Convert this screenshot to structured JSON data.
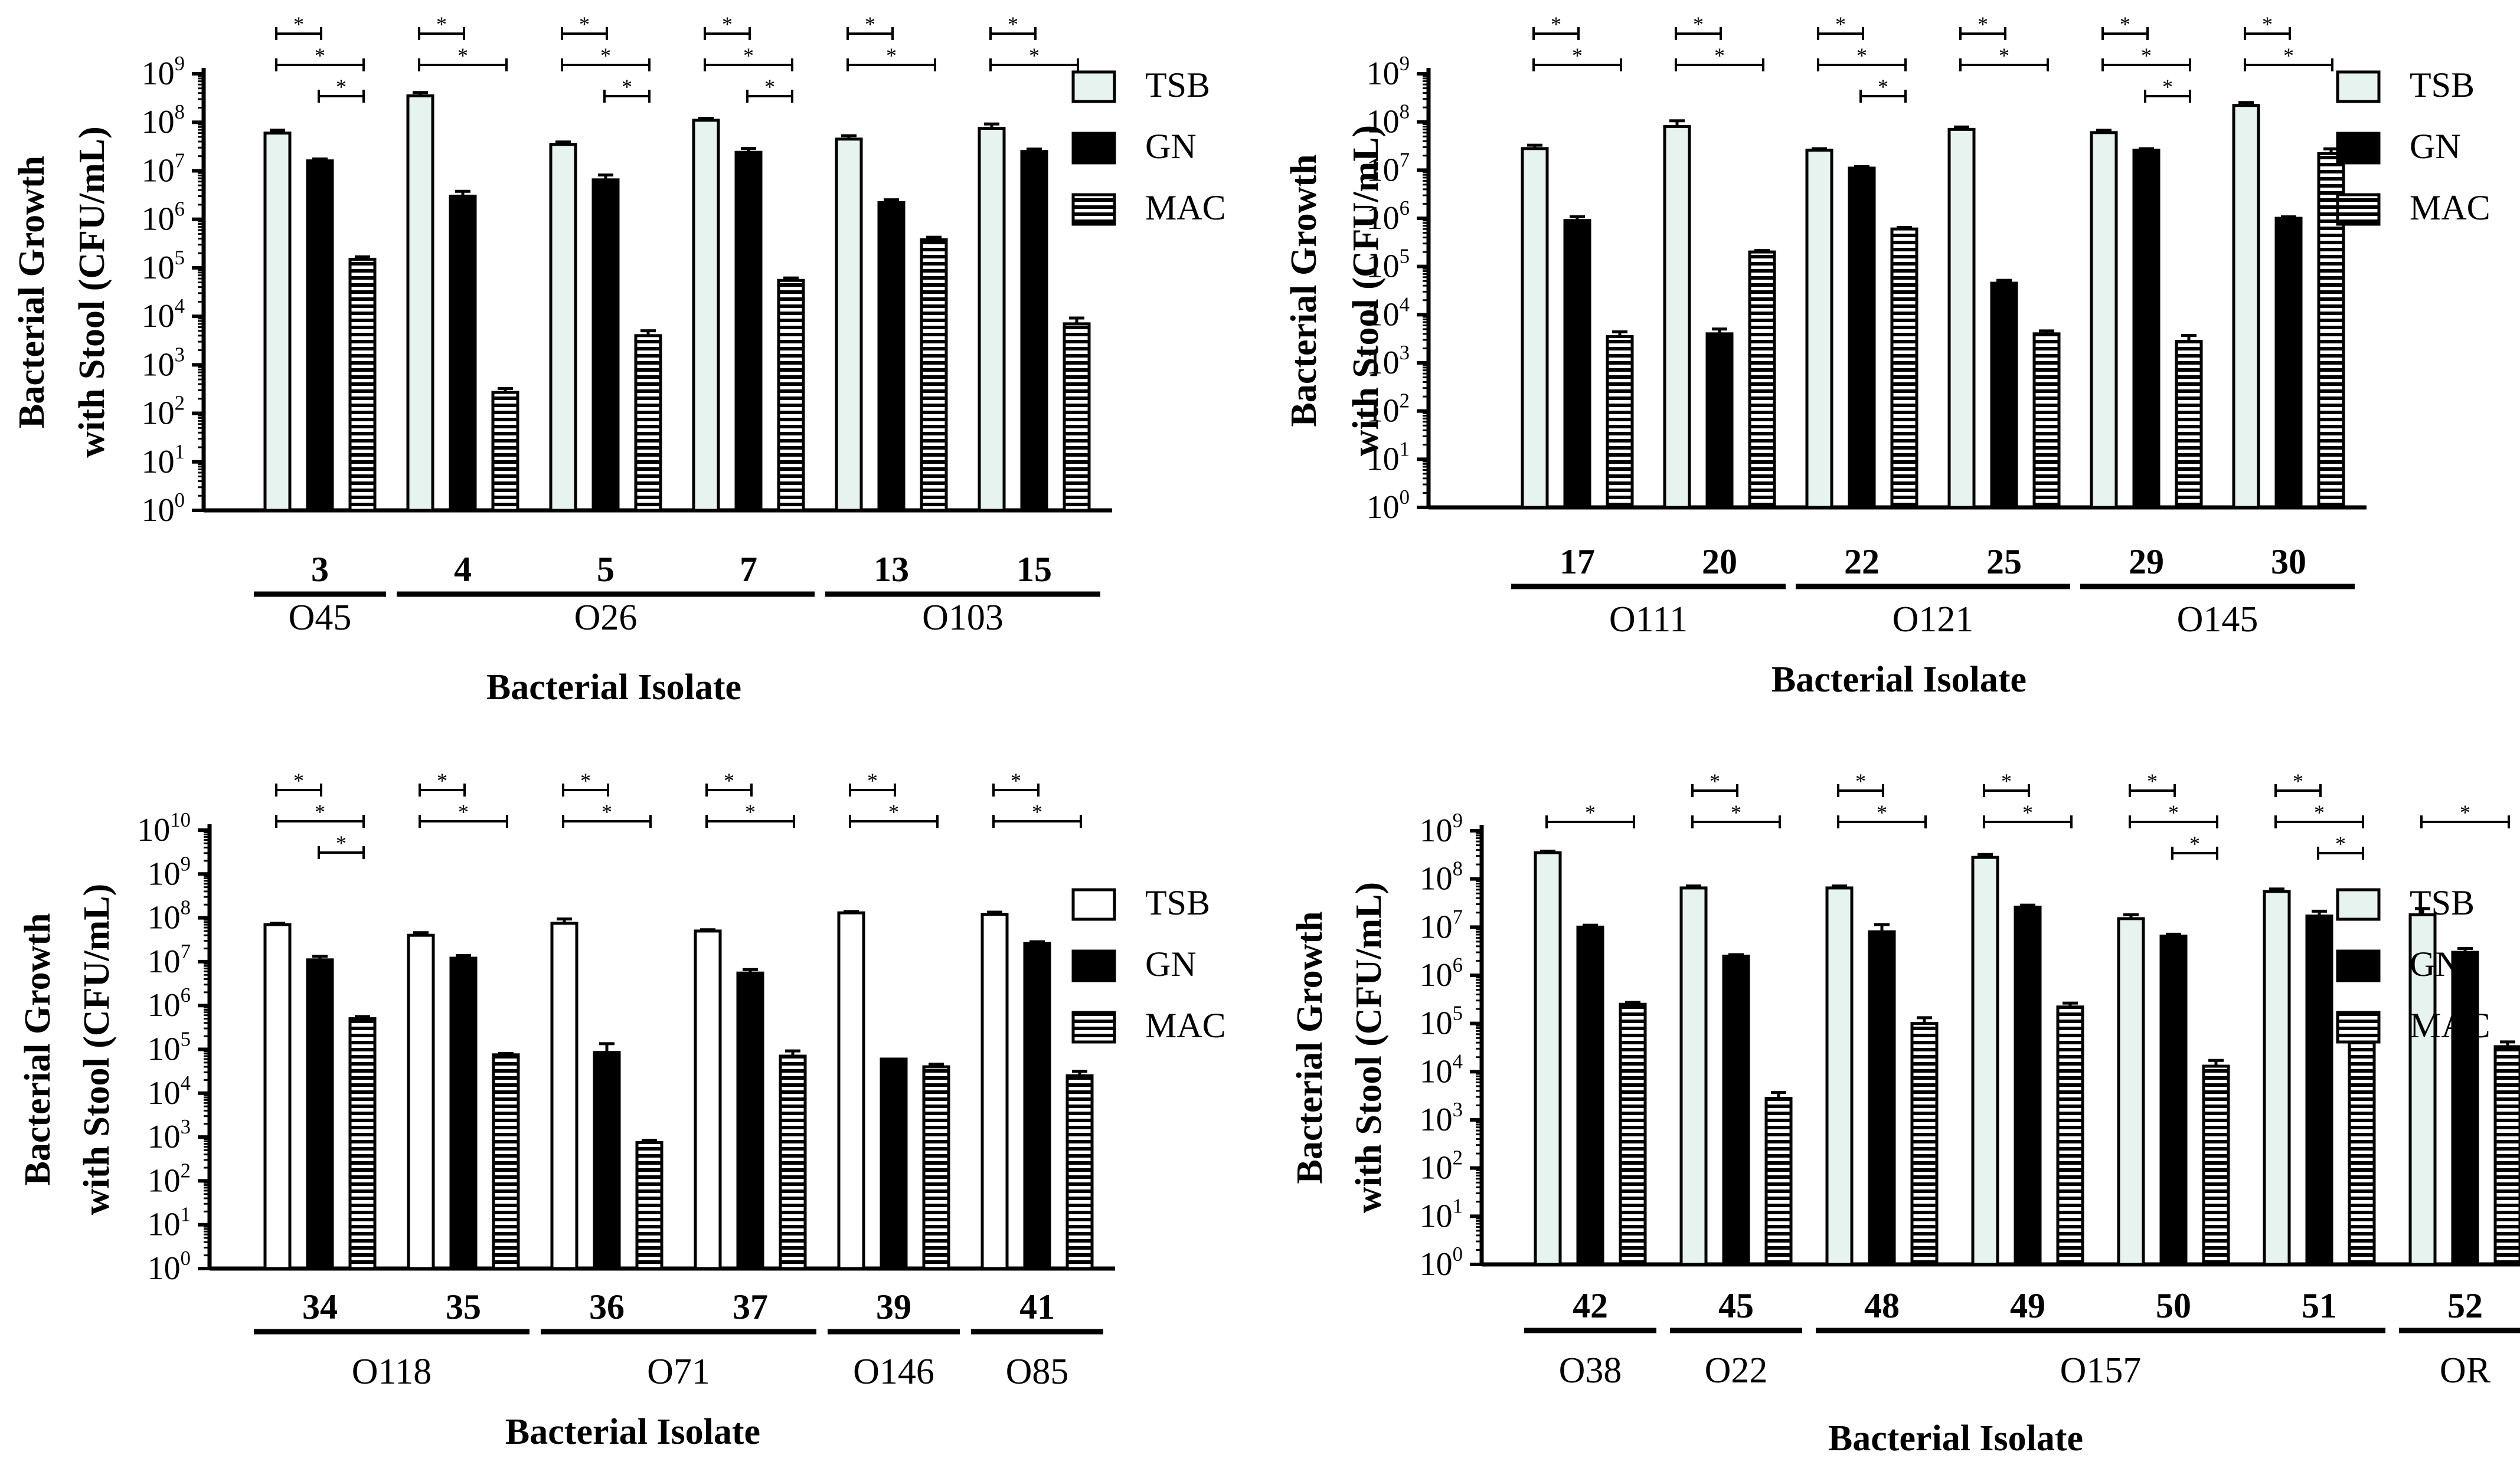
{
  "colors": {
    "tsb_fill": "#e6f3ef",
    "gn_fill": "#000000",
    "stroke": "#000000"
  },
  "legend_labels": [
    "TSB",
    "GN",
    "MAC"
  ],
  "significance_mark": "*",
  "chart_data": [
    {
      "type": "bar",
      "scale": "log10",
      "ylabel_line1": "Bacterial Growth",
      "ylabel_line2": "with Stool (CFU/mL)",
      "xlabel": "Bacterial Isolate",
      "ymax_exp": 9,
      "tick_labels": [
        "10",
        "0",
        "1",
        "2",
        "3",
        "4",
        "5",
        "6",
        "7",
        "8",
        "9"
      ],
      "tsb_fill": "#e6f3ef",
      "isolates": [
        {
          "id": "3",
          "tsb": 60000000.0,
          "gn": 16000000.0,
          "mac": 150000.0,
          "err": [
            0.06,
            0.04,
            0.05
          ]
        },
        {
          "id": "4",
          "tsb": 350000000.0,
          "gn": 3000000.0,
          "mac": 270.0,
          "err": [
            0.07,
            0.1,
            0.08
          ]
        },
        {
          "id": "5",
          "tsb": 35000000.0,
          "gn": 6500000.0,
          "mac": 4000.0,
          "err": [
            0.05,
            0.1,
            0.1
          ]
        },
        {
          "id": "7",
          "tsb": 110000000.0,
          "gn": 24000000.0,
          "mac": 55000.0,
          "err": [
            0.04,
            0.08,
            0.05
          ]
        },
        {
          "id": "13",
          "tsb": 45000000.0,
          "gn": 2200000.0,
          "mac": 380000.0,
          "err": [
            0.07,
            0.06,
            0.05
          ]
        },
        {
          "id": "15",
          "tsb": 75000000.0,
          "gn": 25000000.0,
          "mac": 7000.0,
          "err": [
            0.09,
            0.05,
            0.12
          ]
        }
      ],
      "groups": [
        {
          "label": "O45",
          "from": 0,
          "to": 0
        },
        {
          "label": "O26",
          "from": 1,
          "to": 3
        },
        {
          "label": "O103",
          "from": 4,
          "to": 5
        }
      ],
      "sig": [
        {
          "isolate": 0,
          "pairs": [
            [
              0,
              1
            ],
            [
              0,
              2
            ],
            [
              1,
              2
            ]
          ]
        },
        {
          "isolate": 1,
          "pairs": [
            [
              0,
              1
            ],
            [
              0,
              2
            ]
          ]
        },
        {
          "isolate": 2,
          "pairs": [
            [
              0,
              1
            ],
            [
              0,
              2
            ],
            [
              1,
              2
            ]
          ]
        },
        {
          "isolate": 3,
          "pairs": [
            [
              0,
              1
            ],
            [
              0,
              2
            ],
            [
              1,
              2
            ]
          ]
        },
        {
          "isolate": 4,
          "pairs": [
            [
              0,
              1
            ],
            [
              0,
              2
            ]
          ]
        },
        {
          "isolate": 5,
          "pairs": [
            [
              0,
              1
            ],
            [
              0,
              2
            ]
          ]
        }
      ]
    },
    {
      "type": "bar",
      "scale": "log10",
      "ylabel_line1": "Bacterial Growth",
      "ylabel_line2": "with Stool (CFU/mL)",
      "xlabel": "Bacterial Isolate",
      "ymax_exp": 9,
      "tick_labels": [
        "10",
        "0",
        "1",
        "2",
        "3",
        "4",
        "5",
        "6",
        "7",
        "8",
        "9"
      ],
      "tsb_fill": "#e6f3ef",
      "isolates": [
        {
          "id": "17",
          "tsb": 28000000.0,
          "gn": 900000.0,
          "mac": 3500.0,
          "err": [
            0.07,
            0.08,
            0.1
          ]
        },
        {
          "id": "20",
          "tsb": 80000000.0,
          "gn": 4000.0,
          "mac": 200000.0,
          "err": [
            0.12,
            0.1,
            0.03
          ]
        },
        {
          "id": "22",
          "tsb": 26000000.0,
          "gn": 11000000.0,
          "mac": 600000.0,
          "err": [
            0.03,
            0.03,
            0.03
          ]
        },
        {
          "id": "25",
          "tsb": 70000000.0,
          "gn": 45000.0,
          "mac": 4000.0,
          "err": [
            0.05,
            0.06,
            0.06
          ]
        },
        {
          "id": "29",
          "tsb": 60000000.0,
          "gn": 26000000.0,
          "mac": 2800.0,
          "err": [
            0.05,
            0.03,
            0.12
          ]
        },
        {
          "id": "30",
          "tsb": 220000000.0,
          "gn": 1000000.0,
          "mac": 22000000.0,
          "err": [
            0.06,
            0.03,
            0.1
          ]
        }
      ],
      "groups": [
        {
          "label": "O111",
          "from": 0,
          "to": 1
        },
        {
          "label": "O121",
          "from": 2,
          "to": 3
        },
        {
          "label": "O145",
          "from": 4,
          "to": 5
        }
      ],
      "sig": [
        {
          "isolate": 0,
          "pairs": [
            [
              0,
              1
            ],
            [
              0,
              2
            ]
          ]
        },
        {
          "isolate": 1,
          "pairs": [
            [
              0,
              1
            ],
            [
              0,
              2
            ]
          ]
        },
        {
          "isolate": 2,
          "pairs": [
            [
              0,
              1
            ],
            [
              0,
              2
            ],
            [
              1,
              2
            ]
          ]
        },
        {
          "isolate": 3,
          "pairs": [
            [
              0,
              1
            ],
            [
              0,
              2
            ]
          ]
        },
        {
          "isolate": 4,
          "pairs": [
            [
              0,
              1
            ],
            [
              0,
              2
            ],
            [
              1,
              2
            ]
          ]
        },
        {
          "isolate": 5,
          "pairs": [
            [
              0,
              1
            ],
            [
              0,
              2
            ]
          ]
        }
      ]
    },
    {
      "type": "bar",
      "scale": "log10",
      "ylabel_line1": "Bacterial Growth",
      "ylabel_line2": "with Stool (CFU/mL)",
      "xlabel": "Bacterial Isolate",
      "ymax_exp": 10,
      "tick_labels": [
        "10",
        "0",
        "1",
        "2",
        "3",
        "4",
        "5",
        "6",
        "7",
        "8",
        "9",
        "10"
      ],
      "tsb_fill": "#ffffff",
      "isolates": [
        {
          "id": "34",
          "tsb": 70000000.0,
          "gn": 11000000.0,
          "mac": 500000.0,
          "err": [
            0.03,
            0.08,
            0.05
          ]
        },
        {
          "id": "35",
          "tsb": 40000000.0,
          "gn": 12000000.0,
          "mac": 75000.0,
          "err": [
            0.06,
            0.06,
            0.03
          ]
        },
        {
          "id": "36",
          "tsb": 75000000.0,
          "gn": 85000.0,
          "mac": 750.0,
          "err": [
            0.1,
            0.2,
            0.05
          ]
        },
        {
          "id": "37",
          "tsb": 50000000.0,
          "gn": 5500000.0,
          "mac": 70000.0,
          "err": [
            0.03,
            0.08,
            0.12
          ]
        },
        {
          "id": "39",
          "tsb": 130000000.0,
          "gn": 60000.0,
          "mac": 40000.0,
          "err": [
            0.03,
            0.0,
            0.06
          ]
        },
        {
          "id": "41",
          "tsb": 120000000.0,
          "gn": 26000000.0,
          "mac": 25000.0,
          "err": [
            0.05,
            0.04,
            0.1
          ]
        }
      ],
      "groups": [
        {
          "label": "O118",
          "from": 0,
          "to": 1
        },
        {
          "label": "O71",
          "from": 2,
          "to": 3
        },
        {
          "label": "O146",
          "from": 4,
          "to": 4
        },
        {
          "label": "O85",
          "from": 5,
          "to": 5
        }
      ],
      "sig": [
        {
          "isolate": 0,
          "pairs": [
            [
              0,
              1
            ],
            [
              0,
              2
            ],
            [
              1,
              2
            ]
          ]
        },
        {
          "isolate": 1,
          "pairs": [
            [
              0,
              1
            ],
            [
              0,
              2
            ]
          ]
        },
        {
          "isolate": 2,
          "pairs": [
            [
              0,
              1
            ],
            [
              0,
              2
            ]
          ]
        },
        {
          "isolate": 3,
          "pairs": [
            [
              0,
              1
            ],
            [
              0,
              2
            ]
          ]
        },
        {
          "isolate": 4,
          "pairs": [
            [
              0,
              1
            ],
            [
              0,
              2
            ]
          ]
        },
        {
          "isolate": 5,
          "pairs": [
            [
              0,
              1
            ],
            [
              0,
              2
            ]
          ]
        }
      ]
    },
    {
      "type": "bar",
      "scale": "log10",
      "ylabel_line1": "Bacterial Growth",
      "ylabel_line2": "with Stool (CFU/mL)",
      "xlabel": "Bacterial Isolate",
      "ymax_exp": 9,
      "tick_labels": [
        "10",
        "0",
        "1",
        "2",
        "3",
        "4",
        "5",
        "6",
        "7",
        "8",
        "9"
      ],
      "tsb_fill": "#e6f3ef",
      "isolates": [
        {
          "id": "42",
          "tsb": 350000000.0,
          "gn": 10000000.0,
          "mac": 250000.0,
          "err": [
            0.03,
            0.04,
            0.04
          ]
        },
        {
          "id": "45",
          "tsb": 65000000.0,
          "gn": 2500000.0,
          "mac": 2800.0,
          "err": [
            0.04,
            0.03,
            0.12
          ]
        },
        {
          "id": "48",
          "tsb": 65000000.0,
          "gn": 8000000.0,
          "mac": 100000.0,
          "err": [
            0.04,
            0.15,
            0.12
          ]
        },
        {
          "id": "49",
          "tsb": 280000000.0,
          "gn": 26000000.0,
          "mac": 220000.0,
          "err": [
            0.06,
            0.04,
            0.08
          ]
        },
        {
          "id": "50",
          "tsb": 15000000.0,
          "gn": 6500000.0,
          "mac": 13000.0,
          "err": [
            0.08,
            0.04,
            0.12
          ]
        },
        {
          "id": "51",
          "tsb": 55000000.0,
          "gn": 17000000.0,
          "mac": 110000.0,
          "err": [
            0.05,
            0.1,
            0.04
          ]
        },
        {
          "id": "52",
          "tsb": 18000000.0,
          "gn": 3000000.0,
          "mac": 33000.0,
          "err": [
            0.13,
            0.08,
            0.1
          ]
        }
      ],
      "groups": [
        {
          "label": "O38",
          "from": 0,
          "to": 0
        },
        {
          "label": "O22",
          "from": 1,
          "to": 1
        },
        {
          "label": "O157",
          "from": 2,
          "to": 5
        },
        {
          "label": "OR",
          "from": 6,
          "to": 6
        }
      ],
      "sig": [
        {
          "isolate": 0,
          "pairs": [
            [
              0,
              2
            ]
          ]
        },
        {
          "isolate": 1,
          "pairs": [
            [
              0,
              1
            ],
            [
              0,
              2
            ]
          ]
        },
        {
          "isolate": 2,
          "pairs": [
            [
              0,
              1
            ],
            [
              0,
              2
            ]
          ]
        },
        {
          "isolate": 3,
          "pairs": [
            [
              0,
              1
            ],
            [
              0,
              2
            ]
          ]
        },
        {
          "isolate": 4,
          "pairs": [
            [
              0,
              1
            ],
            [
              0,
              2
            ],
            [
              1,
              2
            ]
          ]
        },
        {
          "isolate": 5,
          "pairs": [
            [
              0,
              1
            ],
            [
              0,
              2
            ],
            [
              1,
              2
            ]
          ]
        },
        {
          "isolate": 6,
          "pairs": [
            [
              0,
              2
            ]
          ]
        }
      ]
    }
  ]
}
